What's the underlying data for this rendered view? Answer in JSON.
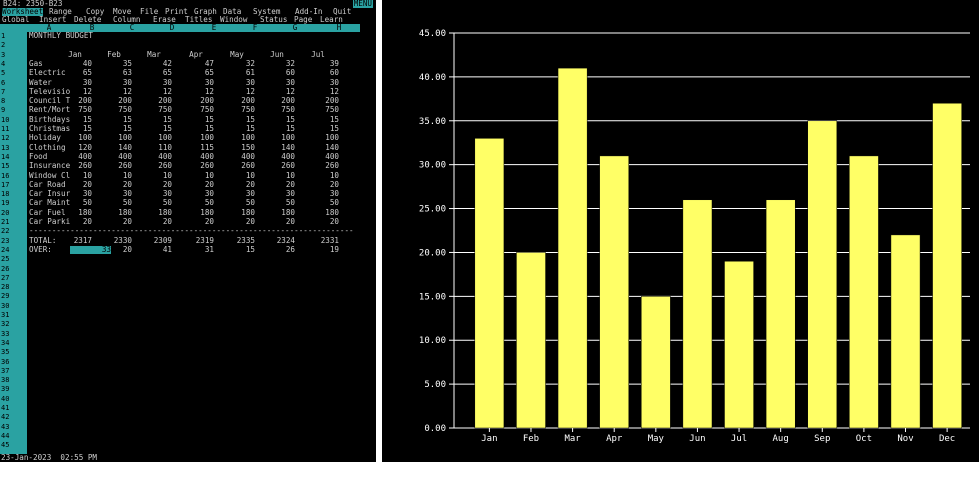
{
  "cell_ref": "B24: 2350-B23",
  "mode_badge": "MENU",
  "menu_main": [
    {
      "label": "Worksheet",
      "active": true
    },
    {
      "label": "Range"
    },
    {
      "label": "Copy"
    },
    {
      "label": "Move"
    },
    {
      "label": "File"
    },
    {
      "label": "Print"
    },
    {
      "label": "Graph"
    },
    {
      "label": "Data"
    },
    {
      "label": "System"
    },
    {
      "label": "Add-In"
    },
    {
      "label": "Quit"
    }
  ],
  "menu_sub": [
    "Global",
    "Insert",
    "Delete",
    "Column",
    "Erase",
    "Titles",
    "Window",
    "Status",
    "Page",
    "Learn"
  ],
  "columns": [
    "A",
    "B",
    "C",
    "D",
    "E",
    "F",
    "G",
    "H"
  ],
  "row_numbers": [
    "1",
    "2",
    "3",
    "4",
    "5",
    "6",
    "7",
    "8",
    "9",
    "10",
    "11",
    "12",
    "13",
    "14",
    "15",
    "16",
    "17",
    "18",
    "19",
    "20",
    "21",
    "22",
    "23",
    "24",
    "25",
    "26",
    "27",
    "28",
    "29",
    "30",
    "31",
    "32",
    "33",
    "34",
    "35",
    "36",
    "37",
    "38",
    "39",
    "40",
    "41",
    "42",
    "43",
    "44",
    "45"
  ],
  "sheet_title": "MONTHLY BUDGET",
  "month_headers": [
    "Jan",
    "Feb",
    "Mar",
    "Apr",
    "May",
    "Jun",
    "Jul"
  ],
  "rows": [
    {
      "label": "Gas",
      "values": [
        "40",
        "35",
        "42",
        "47",
        "32",
        "32",
        "39"
      ]
    },
    {
      "label": "Electric",
      "values": [
        "65",
        "63",
        "65",
        "65",
        "61",
        "60",
        "60"
      ]
    },
    {
      "label": "Water",
      "values": [
        "30",
        "30",
        "30",
        "30",
        "30",
        "30",
        "30"
      ]
    },
    {
      "label": "Televisio",
      "values": [
        "12",
        "12",
        "12",
        "12",
        "12",
        "12",
        "12"
      ]
    },
    {
      "label": "Council T",
      "values": [
        "200",
        "200",
        "200",
        "200",
        "200",
        "200",
        "200"
      ]
    },
    {
      "label": "Rent/Mort",
      "values": [
        "750",
        "750",
        "750",
        "750",
        "750",
        "750",
        "750"
      ]
    },
    {
      "label": "Birthdays",
      "values": [
        "15",
        "15",
        "15",
        "15",
        "15",
        "15",
        "15"
      ]
    },
    {
      "label": "Christmas",
      "values": [
        "15",
        "15",
        "15",
        "15",
        "15",
        "15",
        "15"
      ]
    },
    {
      "label": "Holiday",
      "values": [
        "100",
        "100",
        "100",
        "100",
        "100",
        "100",
        "100"
      ]
    },
    {
      "label": "Clothing",
      "values": [
        "120",
        "140",
        "110",
        "115",
        "150",
        "140",
        "140"
      ]
    },
    {
      "label": "Food",
      "values": [
        "400",
        "400",
        "400",
        "400",
        "400",
        "400",
        "400"
      ]
    },
    {
      "label": "Insurance",
      "values": [
        "260",
        "260",
        "260",
        "260",
        "260",
        "260",
        "260"
      ]
    },
    {
      "label": "Window Cl",
      "values": [
        "10",
        "10",
        "10",
        "10",
        "10",
        "10",
        "10"
      ]
    },
    {
      "label": "Car Road",
      "values": [
        "20",
        "20",
        "20",
        "20",
        "20",
        "20",
        "20"
      ]
    },
    {
      "label": "Car Insur",
      "values": [
        "30",
        "30",
        "30",
        "30",
        "30",
        "30",
        "30"
      ]
    },
    {
      "label": "Car Maint",
      "values": [
        "50",
        "50",
        "50",
        "50",
        "50",
        "50",
        "50"
      ]
    },
    {
      "label": "Car Fuel",
      "values": [
        "180",
        "180",
        "180",
        "180",
        "180",
        "180",
        "180"
      ]
    },
    {
      "label": "Car Parki",
      "values": [
        "20",
        "20",
        "20",
        "20",
        "20",
        "20",
        "20"
      ]
    }
  ],
  "separator": "-----------------------------------------------------------------------------",
  "total_row": {
    "label": "TOTAL:",
    "values": [
      "2317",
      "2330",
      "2309",
      "2319",
      "2335",
      "2324",
      "2331"
    ]
  },
  "over_row": {
    "label": "OVER:",
    "values": [
      "33",
      "20",
      "41",
      "31",
      "15",
      "26",
      "19"
    ]
  },
  "status_line": "23-Jan-2023  02:55 PM",
  "colors": {
    "bg": "#000000",
    "accent": "#2aa2a2",
    "text": "#cfcfcf",
    "bar": "#ffff66"
  },
  "chart_data": {
    "type": "bar",
    "categories": [
      "Jan",
      "Feb",
      "Mar",
      "Apr",
      "May",
      "Jun",
      "Jul",
      "Aug",
      "Sep",
      "Oct",
      "Nov",
      "Dec"
    ],
    "values": [
      33,
      20,
      41,
      31,
      15,
      26,
      19,
      26,
      35,
      31,
      22,
      37
    ],
    "title": "",
    "xlabel": "",
    "ylabel": "",
    "ylim": [
      0,
      45
    ],
    "yticks": [
      "0.00",
      "5.00",
      "10.00",
      "15.00",
      "20.00",
      "25.00",
      "30.00",
      "35.00",
      "40.00",
      "45.00"
    ],
    "grid": true,
    "bar_color": "#ffff66"
  }
}
